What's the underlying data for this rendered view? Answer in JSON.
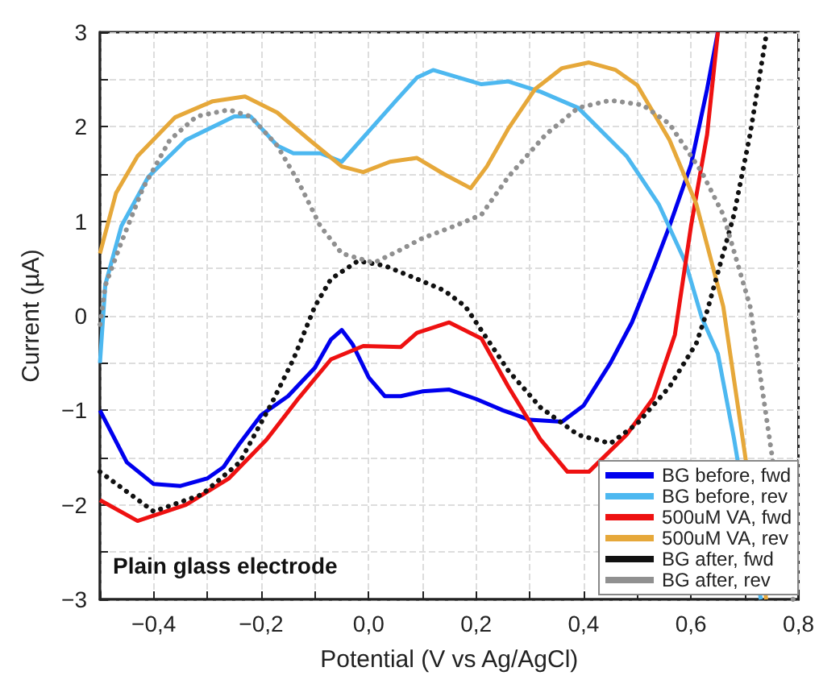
{
  "chart_data": {
    "type": "line",
    "xlabel": "Potential (V vs Ag/AgCl)",
    "ylabel": "Current (µA)",
    "annotations": [
      "Plain glass electrode"
    ],
    "xlim": [
      -0.5,
      0.8
    ],
    "ylim": [
      -3,
      3
    ],
    "xticks": [
      {
        "value": -0.5,
        "label": null
      },
      {
        "value": -0.4,
        "label": "−0,4"
      },
      {
        "value": -0.3,
        "label": null
      },
      {
        "value": -0.2,
        "label": "−0,2"
      },
      {
        "value": -0.1,
        "label": null
      },
      {
        "value": 0,
        "label": "0,0"
      },
      {
        "value": 0.1,
        "label": null
      },
      {
        "value": 0.2,
        "label": "0,2"
      },
      {
        "value": 0.3,
        "label": null
      },
      {
        "value": 0.4,
        "label": "0,4"
      },
      {
        "value": 0.5,
        "label": null
      },
      {
        "value": 0.6,
        "label": "0,6"
      },
      {
        "value": 0.7,
        "label": null
      },
      {
        "value": 0.8,
        "label": "0,8"
      }
    ],
    "yticks": [
      {
        "value": -3,
        "label": "−3"
      },
      {
        "value": -2.5,
        "label": null
      },
      {
        "value": -2,
        "label": "−2"
      },
      {
        "value": -1.5,
        "label": null
      },
      {
        "value": -1,
        "label": "−1"
      },
      {
        "value": -0.5,
        "label": null
      },
      0,
      {
        "value": 0.5,
        "label": null
      },
      1,
      {
        "value": 1.5,
        "label": null
      },
      2,
      {
        "value": 2.5,
        "label": null
      },
      3
    ],
    "grid": true,
    "legend": "bottom right",
    "marker": "none",
    "series": [
      {
        "name": "BG before, fwd",
        "color": "#0000ee",
        "line_style": "solid",
        "x": [
          -0.5,
          -0.45,
          -0.4,
          -0.35,
          -0.3,
          -0.27,
          -0.24,
          -0.2,
          -0.15,
          -0.1,
          -0.07,
          -0.05,
          -0.03,
          0,
          0.03,
          0.06,
          0.1,
          0.15,
          0.2,
          0.25,
          0.3,
          0.36,
          0.4,
          0.45,
          0.49,
          0.53,
          0.56,
          0.6,
          0.63,
          0.65
        ],
        "values": [
          -1,
          -1.55,
          -1.78,
          -1.8,
          -1.72,
          -1.6,
          -1.35,
          -1.05,
          -0.85,
          -0.55,
          -0.25,
          -0.15,
          -0.3,
          -0.65,
          -0.85,
          -0.85,
          -0.8,
          -0.78,
          -0.88,
          -1,
          -1.1,
          -1.12,
          -0.95,
          -0.5,
          -0.07,
          0.5,
          0.95,
          1.6,
          2.4,
          3
        ]
      },
      {
        "name": "BG before, rev",
        "color": "#4db8f0",
        "line_style": "solid",
        "x": [
          0.73,
          0.68,
          0.65,
          0.62,
          0.59,
          0.54,
          0.48,
          0.39,
          0.32,
          0.26,
          0.21,
          0.12,
          0.09,
          0.05,
          -0.05,
          -0.09,
          -0.14,
          -0.17,
          -0.22,
          -0.25,
          -0.34,
          -0.41,
          -0.46,
          -0.49,
          -0.5
        ],
        "values": [
          -3,
          -1.3,
          -0.4,
          -0.02,
          0.56,
          1.18,
          1.69,
          2.2,
          2.37,
          2.48,
          2.45,
          2.6,
          2.52,
          2.27,
          1.63,
          1.72,
          1.72,
          1.8,
          2.11,
          2.11,
          1.86,
          1.47,
          0.95,
          0.33,
          -0.5
        ]
      },
      {
        "name": "500uM VA, fwd",
        "color": "#ee1111",
        "line_style": "solid",
        "x": [
          -0.5,
          -0.43,
          -0.34,
          -0.26,
          -0.19,
          -0.13,
          -0.07,
          -0.01,
          0.06,
          0.09,
          0.15,
          0.21,
          0.26,
          0.32,
          0.37,
          0.41,
          0.48,
          0.53,
          0.57,
          0.6,
          0.63,
          0.65
        ],
        "values": [
          -1.95,
          -2.17,
          -2,
          -1.72,
          -1.31,
          -0.87,
          -0.46,
          -0.32,
          -0.33,
          -0.18,
          -0.07,
          -0.24,
          -0.75,
          -1.31,
          -1.65,
          -1.65,
          -1.26,
          -0.87,
          -0.2,
          0.95,
          1.92,
          3
        ]
      },
      {
        "name": "500uM VA, rev",
        "color": "#e6a83a",
        "line_style": "solid",
        "x": [
          0.74,
          0.66,
          0.61,
          0.56,
          0.5,
          0.46,
          0.41,
          0.36,
          0.31,
          0.26,
          0.22,
          0.19,
          0.14,
          0.09,
          0.04,
          -0.01,
          -0.05,
          -0.11,
          -0.17,
          -0.23,
          -0.29,
          -0.36,
          -0.43,
          -0.47,
          -0.5
        ],
        "values": [
          -3,
          0.1,
          1.18,
          1.86,
          2.44,
          2.6,
          2.68,
          2.62,
          2.4,
          1.98,
          1.58,
          1.35,
          1.5,
          1.67,
          1.63,
          1.52,
          1.58,
          1.86,
          2.15,
          2.32,
          2.27,
          2.1,
          1.69,
          1.3,
          0.66
        ]
      },
      {
        "name": "BG after, fwd",
        "color": "#111111",
        "line_style": "dotted",
        "x": [
          -0.5,
          -0.4,
          -0.31,
          -0.24,
          -0.18,
          -0.14,
          -0.1,
          -0.07,
          -0.02,
          0.03,
          0.09,
          0.14,
          0.18,
          0.26,
          0.32,
          0.39,
          0.45,
          0.5,
          0.56,
          0.61,
          0.63,
          0.68,
          0.71,
          0.74
        ],
        "values": [
          -1.65,
          -2.07,
          -1.89,
          -1.55,
          -0.92,
          -0.46,
          0.1,
          0.39,
          0.58,
          0.53,
          0.39,
          0.27,
          0.1,
          -0.58,
          -0.97,
          -1.26,
          -1.35,
          -1.14,
          -0.75,
          -0.29,
          0.05,
          1.07,
          1.92,
          2.97
        ]
      },
      {
        "name": "BG after, rev",
        "color": "#909090",
        "line_style": "dotted",
        "x": [
          0.79,
          0.71,
          0.66,
          0.62,
          0.56,
          0.51,
          0.45,
          0.39,
          0.33,
          0.26,
          0.21,
          0.16,
          0.1,
          0.06,
          0.01,
          -0.05,
          -0.09,
          -0.13,
          -0.17,
          -0.22,
          -0.26,
          -0.32,
          -0.37,
          -0.42,
          -0.46,
          -0.49,
          -0.5
        ],
        "values": [
          -3,
          0.1,
          1.07,
          1.52,
          2.03,
          2.23,
          2.28,
          2.2,
          1.92,
          1.47,
          1.07,
          0.95,
          0.82,
          0.7,
          0.56,
          0.66,
          0.95,
          1.41,
          1.8,
          2.11,
          2.18,
          2.11,
          1.86,
          1.35,
          0.78,
          0.32,
          -0.1
        ]
      }
    ]
  }
}
